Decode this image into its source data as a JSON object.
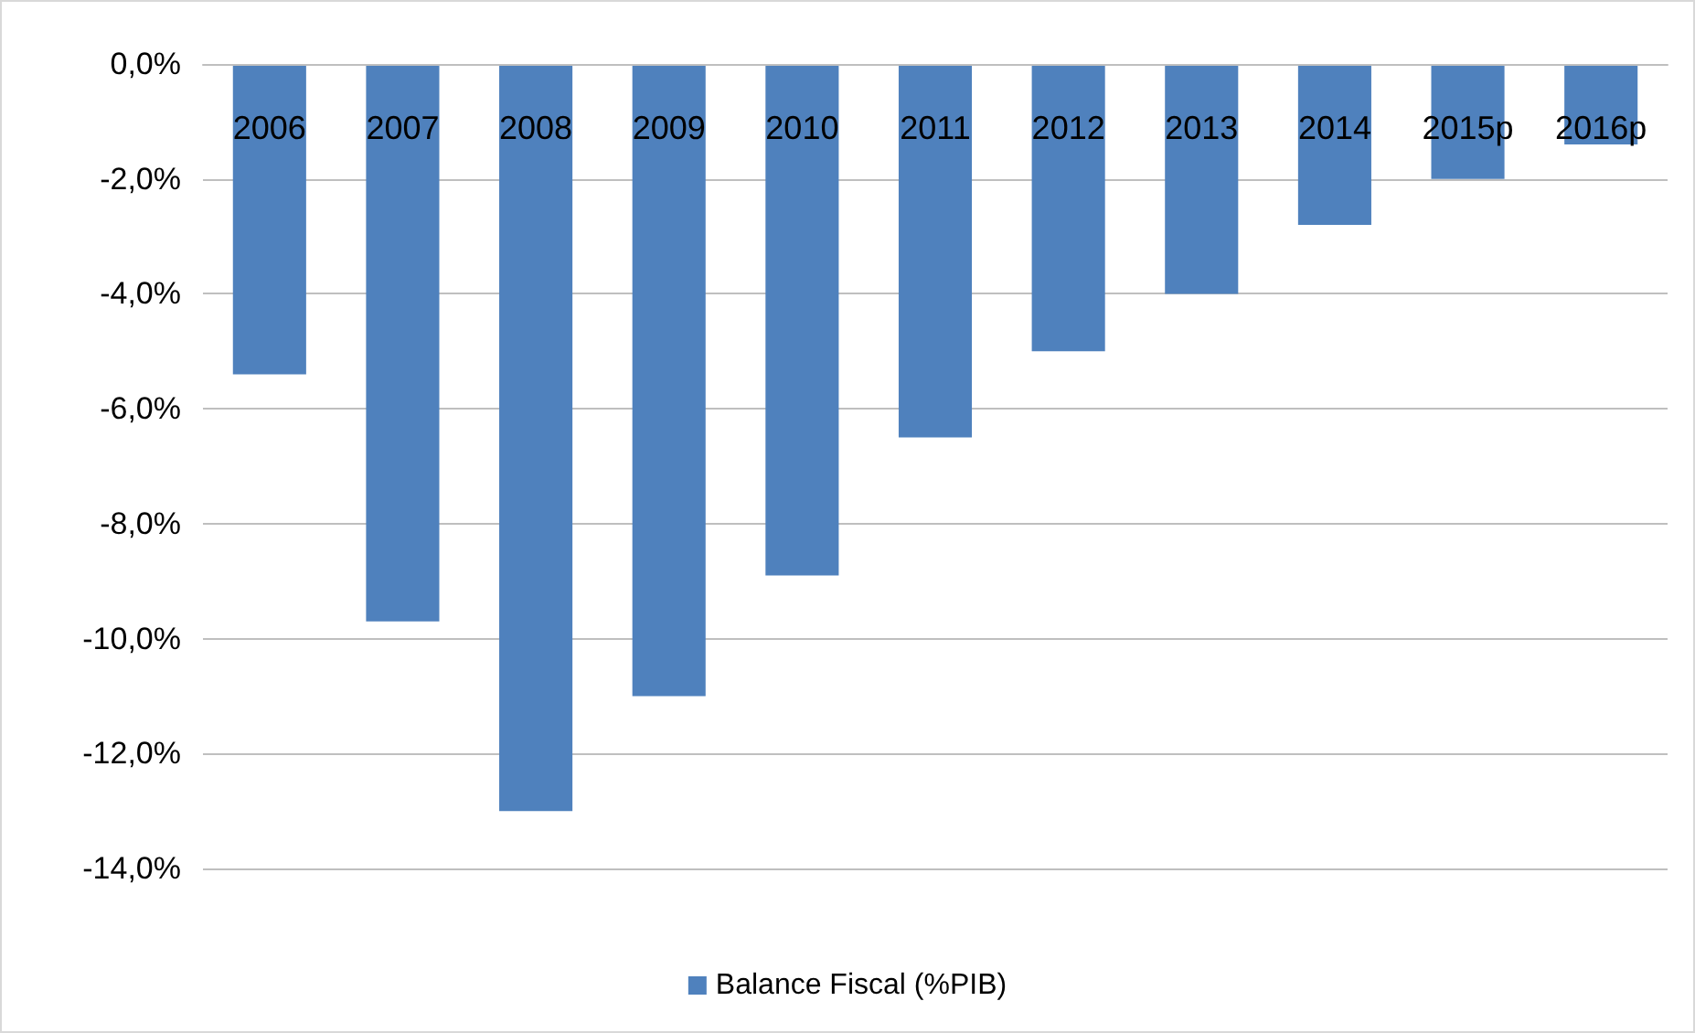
{
  "chart_data": {
    "type": "bar",
    "categories": [
      "2006",
      "2007",
      "2008",
      "2009",
      "2010",
      "2011",
      "2012",
      "2013",
      "2014",
      "2015p",
      "2016p"
    ],
    "series": [
      {
        "name": "Balance Fiscal (%PIB)",
        "color": "#4f81bd",
        "values": [
          -5.4,
          -9.7,
          -13.0,
          -11.0,
          -8.9,
          -6.5,
          -5.0,
          -4.0,
          -2.8,
          -2.0,
          -1.4
        ]
      }
    ],
    "ylim": [
      -14,
      0
    ],
    "yticks": [
      {
        "value": 0,
        "label": "0,0%"
      },
      {
        "value": -2,
        "label": "-2,0%"
      },
      {
        "value": -4,
        "label": "-4,0%"
      },
      {
        "value": -6,
        "label": "-6,0%"
      },
      {
        "value": -8,
        "label": "-8,0%"
      },
      {
        "value": -10,
        "label": "-10,0%"
      },
      {
        "value": -12,
        "label": "-12,0%"
      },
      {
        "value": -14,
        "label": "-14,0%"
      }
    ],
    "grid": "y",
    "legend": "bottom"
  }
}
